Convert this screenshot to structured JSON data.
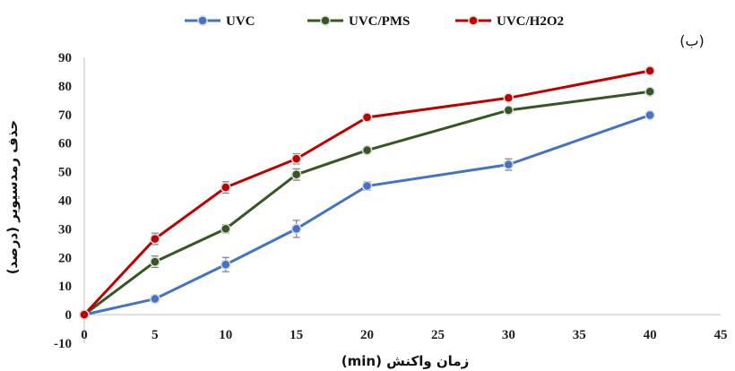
{
  "chart_data": {
    "type": "line",
    "panel_label": "(ب)",
    "xlabel": "زمان واکنش (min)",
    "ylabel": "حذف رمدسیویر (درصد)",
    "xlim": [
      0,
      45
    ],
    "ylim": [
      -10,
      90
    ],
    "x_ticks": [
      0,
      5,
      10,
      15,
      20,
      25,
      30,
      35,
      40,
      45
    ],
    "y_ticks": [
      -10,
      0,
      10,
      20,
      30,
      40,
      50,
      60,
      70,
      80,
      90
    ],
    "grid": false,
    "legend_position": "top",
    "x": [
      0,
      5,
      10,
      15,
      20,
      30,
      40
    ],
    "series": [
      {
        "name": "UVC",
        "color": "#4472C4",
        "values": [
          0,
          5.5,
          17.5,
          30,
          45,
          52.5,
          69.8
        ],
        "errors": [
          0,
          0.8,
          2.5,
          3,
          1.5,
          2,
          0.8
        ]
      },
      {
        "name": "UVC/PMS",
        "color": "#375623",
        "values": [
          0,
          18.5,
          30,
          49,
          57.5,
          71.5,
          78
        ],
        "errors": [
          0,
          2,
          1.5,
          2,
          1,
          1,
          0.8
        ]
      },
      {
        "name": "UVC/H2O2",
        "color": "#C00000",
        "values": [
          0,
          26.5,
          44.5,
          54.5,
          69,
          75.8,
          85.3
        ],
        "errors": [
          0,
          2,
          2,
          1.8,
          1,
          1,
          0.8
        ]
      }
    ]
  }
}
